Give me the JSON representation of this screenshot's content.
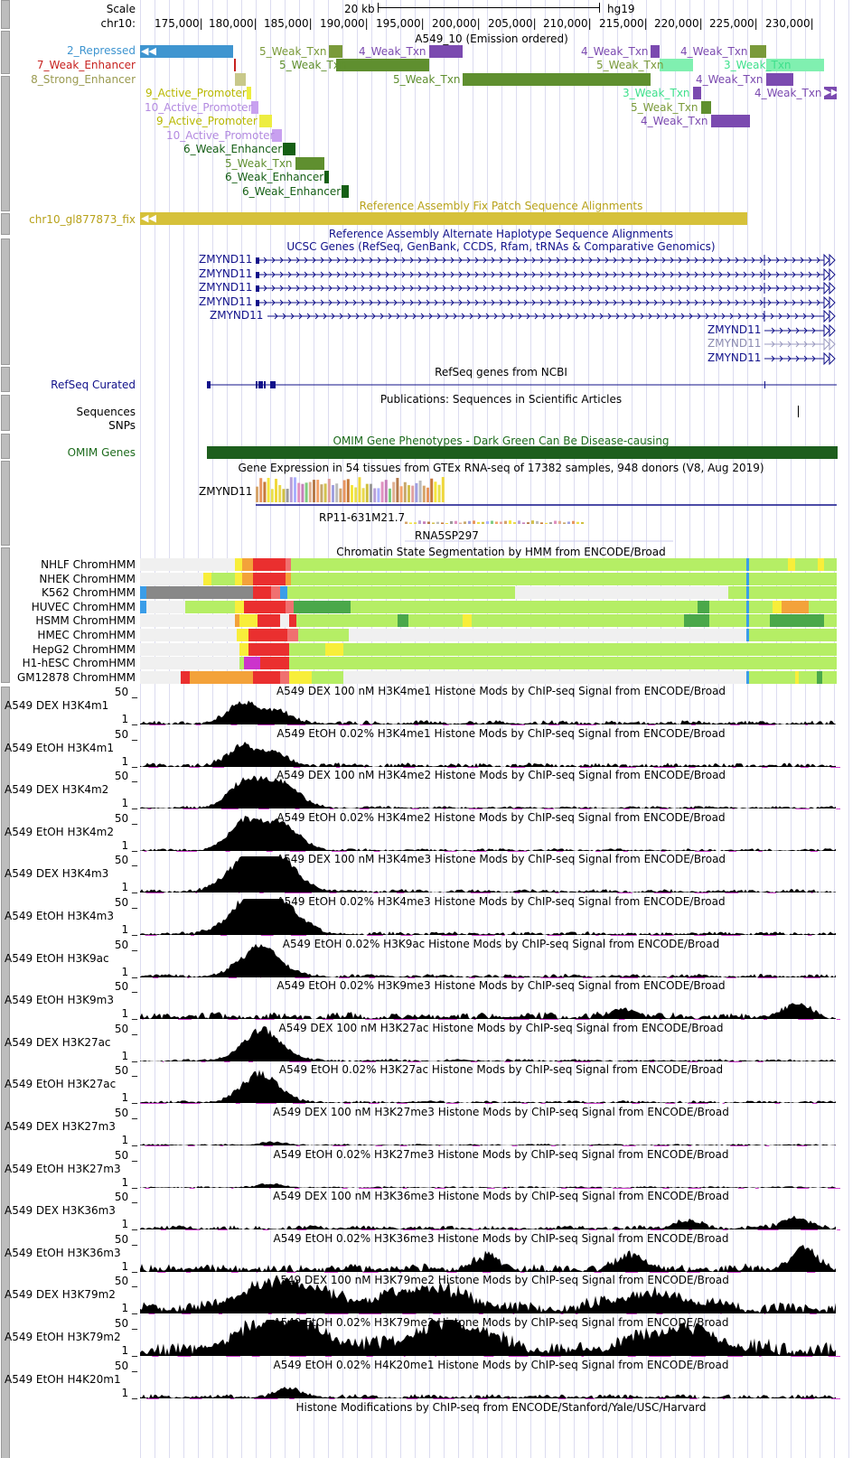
{
  "header": {
    "scale_label": "Scale",
    "chrom_label": "chr10:",
    "scale_text": "20 kb",
    "assembly": "hg19",
    "positions": [
      "175,000|",
      "180,000|",
      "185,000|",
      "190,000|",
      "195,000|",
      "200,000|",
      "205,000|",
      "210,000|",
      "215,000|",
      "220,000|",
      "225,000|",
      "230,000|"
    ]
  },
  "hmm_a549": {
    "title": "A549_10 (Emission ordered)",
    "left_labels": [
      {
        "text": "2_Repressed",
        "color": "#3f95d0"
      },
      {
        "text": "7_Weak_Enhancer",
        "color": "#c7221f"
      },
      {
        "text": "8_Strong_Enhancer",
        "color": "#9a9a50"
      }
    ],
    "features": [
      {
        "text": "9_Active_Promoter",
        "color": "#b8b800"
      },
      {
        "text": "10_Active_Promoter",
        "color": "#b38ae0"
      },
      {
        "text": "9_Active_Promoter",
        "color": "#b8b800"
      },
      {
        "text": "10_Active_Promoter",
        "color": "#b38ae0"
      },
      {
        "text": "6_Weak_Enhancer",
        "color": "#155f15"
      },
      {
        "text": "5_Weak_Txn",
        "color": "#5f8f2f"
      },
      {
        "text": "6_Weak_Enhancer",
        "color": "#155f15"
      },
      {
        "text": "6_Weak_Enhancer",
        "color": "#155f15"
      },
      {
        "text": "5_Weak_Txn",
        "color": "#7a9a3a"
      },
      {
        "text": "4_Weak_Txn",
        "color": "#7b4ab0"
      },
      {
        "text": "5_Weak_Txn",
        "color": "#5f8f2f"
      },
      {
        "text": "5_Weak_Txn",
        "color": "#5f8f2f"
      },
      {
        "text": "4_Weak_Txn",
        "color": "#7b4ab0"
      },
      {
        "text": "5_Weak_Txn",
        "color": "#7a9a3a"
      },
      {
        "text": "3_Weak_Txn",
        "color": "#3ee08c"
      },
      {
        "text": "3_Weak_Txn",
        "color": "#3ee08c"
      },
      {
        "text": "4_Weak_Txn",
        "color": "#7b4ab0"
      },
      {
        "text": "4_Weak_Txn",
        "color": "#7b4ab0"
      },
      {
        "text": "4_Weak_Txn",
        "color": "#7b4ab0"
      },
      {
        "text": "5_Weak_Txn",
        "color": "#7a9a3a"
      },
      {
        "text": "4_Weak_Txn",
        "color": "#7b4ab0"
      }
    ]
  },
  "fix_patch": {
    "title": "Reference Assembly Fix Patch Sequence Alignments",
    "label": "chr10_gl877873_fix",
    "color": "#d6c13a"
  },
  "alt_haplo": {
    "title": "Reference Assembly Alternate Haplotype Sequence Alignments"
  },
  "ucsc_genes": {
    "title": "UCSC Genes (RefSeq, GenBank, CCDS, Rfam, tRNAs & Comparative Genomics)",
    "genes": [
      "ZMYND11",
      "ZMYND11",
      "ZMYND11",
      "ZMYND11",
      "ZMYND11",
      "ZMYND11",
      "ZMYND11",
      "ZMYND11"
    ]
  },
  "refseq": {
    "title": "RefSeq genes from NCBI",
    "label": "RefSeq Curated"
  },
  "pubs": {
    "title": "Publications: Sequences in Scientific Articles",
    "label1": "Sequences",
    "label2": "SNPs"
  },
  "omim": {
    "title": "OMIM Gene Phenotypes - Dark Green Can Be Disease-causing",
    "label": "OMIM Genes"
  },
  "gtex": {
    "title": "Gene Expression in 54 tissues from GTEx RNA-seq of 17382 samples, 948 donors (V8, Aug 2019)",
    "gene1": "ZMYND11",
    "gene2": "RP11-631M21.7",
    "gene3": "RNA5SP297"
  },
  "chromhmm": {
    "title": "Chromatin State Segmentation by HMM from ENCODE/Broad",
    "rows": [
      "NHLF ChromHMM",
      "NHEK ChromHMM",
      "K562 ChromHMM",
      "HUVEC ChromHMM",
      "HSMM ChromHMM",
      "HMEC ChromHMM",
      "HepG2 ChromHMM",
      "H1-hESC ChromHMM",
      "GM12878 ChromHMM"
    ]
  },
  "signal_tracks": [
    {
      "label": "A549 DEX H3K4m1",
      "title": "A549 DEX 100 nM H3K4me1 Histone Mods by ChIP-seq Signal from ENCODE/Broad",
      "max": "50 _",
      "min": "1 _"
    },
    {
      "label": "A549 EtOH H3K4m1",
      "title": "A549 EtOH 0.02% H3K4me1 Histone Mods by ChIP-seq Signal from ENCODE/Broad",
      "max": "50 _",
      "min": "1 _"
    },
    {
      "label": "A549 DEX H3K4m2",
      "title": "A549 DEX 100 nM H3K4me2 Histone Mods by ChIP-seq Signal from ENCODE/Broad",
      "max": "50 _",
      "min": "1 _"
    },
    {
      "label": "A549 EtOH H3K4m2",
      "title": "A549 EtOH 0.02% H3K4me2 Histone Mods by ChIP-seq Signal from ENCODE/Broad",
      "max": "50 _",
      "min": "1 _"
    },
    {
      "label": "A549 DEX H3K4m3",
      "title": "A549 DEX 100 nM H3K4me3 Histone Mods by ChIP-seq Signal from ENCODE/Broad",
      "max": "50 _",
      "min": "1 _"
    },
    {
      "label": "A549 EtOH H3K4m3",
      "title": "A549 EtOH 0.02% H3K4me3 Histone Mods by ChIP-seq Signal from ENCODE/Broad",
      "max": "50 _",
      "min": "1 _"
    },
    {
      "label": "A549 EtOH H3K9ac",
      "title": "A549 EtOH 0.02% H3K9ac Histone Mods by ChIP-seq Signal from ENCODE/Broad",
      "max": "50 _",
      "min": "1 _"
    },
    {
      "label": "A549 EtOH H3K9m3",
      "title": "A549 EtOH 0.02% H3K9me3 Histone Mods by ChIP-seq Signal from ENCODE/Broad",
      "max": "50 _",
      "min": "1 _"
    },
    {
      "label": "A549 DEX H3K27ac",
      "title": "A549 DEX 100 nM H3K27ac Histone Mods by ChIP-seq Signal from ENCODE/Broad",
      "max": "50 _",
      "min": "1 _"
    },
    {
      "label": "A549 EtOH H3K27ac",
      "title": "A549 EtOH 0.02% H3K27ac Histone Mods by ChIP-seq Signal from ENCODE/Broad",
      "max": "50 _",
      "min": "1 _"
    },
    {
      "label": "A549 DEX H3K27m3",
      "title": "A549 DEX 100 nM H3K27me3 Histone Mods by ChIP-seq Signal from ENCODE/Broad",
      "max": "50 _",
      "min": "1 _"
    },
    {
      "label": "A549 EtOH H3K27m3",
      "title": "A549 EtOH 0.02% H3K27me3 Histone Mods by ChIP-seq Signal from ENCODE/Broad",
      "max": "50 _",
      "min": "1 _"
    },
    {
      "label": "A549 DEX H3K36m3",
      "title": "A549 DEX 100 nM H3K36me3 Histone Mods by ChIP-seq Signal from ENCODE/Broad",
      "max": "50 _",
      "min": "1 _"
    },
    {
      "label": "A549 EtOH H3K36m3",
      "title": "A549 EtOH 0.02% H3K36me3 Histone Mods by ChIP-seq Signal from ENCODE/Broad",
      "max": "50 _",
      "min": "1 _"
    },
    {
      "label": "A549 DEX H3K79m2",
      "title": "A549 DEX 100 nM H3K79me2 Histone Mods by ChIP-seq Signal from ENCODE/Broad",
      "max": "50 _",
      "min": "1 _"
    },
    {
      "label": "A549 EtOH H3K79m2",
      "title": "A549 EtOH 0.02% H3K79me2 Histone Mods by ChIP-seq Signal from ENCODE/Broad",
      "max": "50 _",
      "min": "1 _"
    },
    {
      "label": "A549 EtOH H4K20m1",
      "title": "A549 EtOH 0.02% H4K20me1 Histone Mods by ChIP-seq Signal from ENCODE/Broad",
      "max": "50 _",
      "min": "1 _"
    }
  ],
  "footer_title": "Histone Modifications by ChIP-seq from ENCODE/Stanford/Yale/USC/Harvard"
}
